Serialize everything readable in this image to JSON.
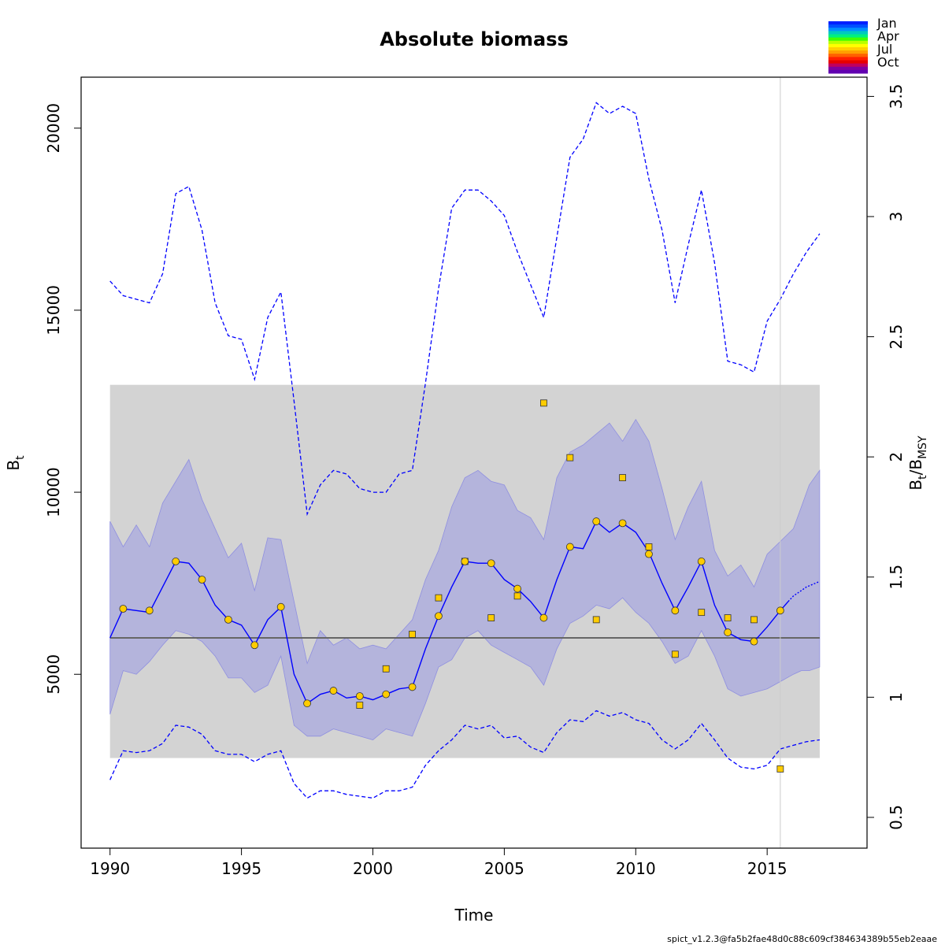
{
  "chart_data": {
    "type": "line",
    "title": "Absolute biomass",
    "xlabel": "Time",
    "ylabel": "B",
    "ylabel_sub": "t",
    "y2label_main": "B",
    "y2label_sub1": "t",
    "y2label_mid": "/B",
    "y2label_sub2": "MSY",
    "footer": "spict_v1.2.3@fa5b2fae48d0c88c609cf384634389b55eb2eaae",
    "xlim": [
      1988.9,
      2018.8
    ],
    "ylim": [
      225,
      21400
    ],
    "y2lim": [
      0.372,
      3.58
    ],
    "bmsy": 6000,
    "x_ticks": [
      1990,
      1995,
      2000,
      2005,
      2010,
      2015
    ],
    "y_ticks": [
      5000,
      10000,
      15000,
      20000
    ],
    "y2_ticks": [
      0.5,
      1,
      1.5,
      2,
      2.5,
      3,
      3.5
    ],
    "bmsy_band": {
      "x": [
        1990,
        2017
      ],
      "y": [
        2700,
        12950
      ]
    },
    "vline_x": 2015.5,
    "legend": {
      "labels": [
        "Jan",
        "Apr",
        "Jul",
        "Oct"
      ],
      "colors": [
        "#0020ff",
        "#0050ff",
        "#0090ff",
        "#00c8c0",
        "#00f080",
        "#40ff00",
        "#b8ff00",
        "#ffff00",
        "#ffd000",
        "#ffa000",
        "#ff6000",
        "#ff2000",
        "#e80000",
        "#c00060",
        "#8000a0",
        "#6000b0"
      ]
    },
    "colors": {
      "line": "#0000ff",
      "ci_fill": "#a6a6e0",
      "ci_edge": "#8f8fe0",
      "bmsy_line": "#666666",
      "band": "#d3d3d3",
      "point": "#ffcc00",
      "vline": "#cccccc"
    },
    "estimate": {
      "x": [
        1990,
        1990.5,
        1991,
        1991.5,
        1992,
        1992.5,
        1993,
        1993.5,
        1994,
        1994.5,
        1995,
        1995.5,
        1996,
        1996.5,
        1997,
        1997.5,
        1998,
        1998.5,
        1999,
        1999.5,
        2000,
        2000.5,
        2001,
        2001.5,
        2002,
        2002.5,
        2003,
        2003.5,
        2004,
        2004.5,
        2005,
        2005.5,
        2006,
        2006.5,
        2007,
        2007.5,
        2008,
        2008.5,
        2009,
        2009.5,
        2010,
        2010.5,
        2011,
        2011.5,
        2012,
        2012.5,
        2013,
        2013.5,
        2014,
        2014.5,
        2015,
        2015.5,
        2015.8
      ],
      "y": [
        6000,
        6800,
        6750,
        6700,
        7400,
        8100,
        8050,
        7600,
        6900,
        6500,
        6350,
        5800,
        6500,
        6850,
        5000,
        4200,
        4450,
        4550,
        4350,
        4400,
        4300,
        4450,
        4600,
        4650,
        5700,
        6600,
        7400,
        8100,
        8050,
        8050,
        7600,
        7350,
        7000,
        6550,
        7600,
        8500,
        8450,
        9200,
        8900,
        9150,
        8900,
        8350,
        7500,
        6750,
        7400,
        8100,
        6900,
        6150,
        5950,
        5900,
        6300,
        6750,
        7000
      ]
    },
    "prediction": {
      "x": [
        2015.8,
        2016,
        2016.5,
        2017
      ],
      "y": [
        7000,
        7150,
        7400,
        7550
      ]
    },
    "ci_upper": [
      9200,
      8500,
      9100,
      8500,
      9700,
      10300,
      10900,
      9800,
      9000,
      8200,
      8600,
      7300,
      8750,
      8700,
      7000,
      5300,
      6200,
      5800,
      6000,
      5700,
      5800,
      5700,
      6100,
      6500,
      7600,
      8400,
      9600,
      10400,
      10600,
      10300,
      10200,
      9500,
      9300,
      8700,
      10400,
      11100,
      11300,
      11600,
      11900,
      11400,
      12000,
      11400,
      10100,
      8700,
      9600,
      10300,
      8400,
      7700,
      8000,
      7400,
      8300,
      8650,
      9000,
      9600,
      10200,
      10600
    ],
    "ci_lower": [
      3900,
      5100,
      5000,
      5350,
      5800,
      6200,
      6100,
      5900,
      5500,
      4900,
      4900,
      4500,
      4700,
      5500,
      3600,
      3300,
      3300,
      3500,
      3400,
      3300,
      3200,
      3500,
      3400,
      3300,
      4200,
      5200,
      5400,
      6000,
      6200,
      5800,
      5600,
      5400,
      5200,
      4700,
      5700,
      6400,
      6600,
      6900,
      6800,
      7100,
      6700,
      6400,
      5900,
      5300,
      5500,
      6200,
      5500,
      4600,
      4400,
      4500,
      4600,
      4800,
      5000,
      5100,
      5100,
      5200
    ],
    "ci_x": [
      1990,
      1990.5,
      1991,
      1991.5,
      1992,
      1992.5,
      1993,
      1993.5,
      1994,
      1994.5,
      1995,
      1995.5,
      1996,
      1996.5,
      1997,
      1997.5,
      1998,
      1998.5,
      1999,
      1999.5,
      2000,
      2000.5,
      2001,
      2001.5,
      2002,
      2002.5,
      2003,
      2003.5,
      2004,
      2004.5,
      2005,
      2005.5,
      2006,
      2006.5,
      2007,
      2007.5,
      2008,
      2008.5,
      2009,
      2009.5,
      2010,
      2010.5,
      2011,
      2011.5,
      2012,
      2012.5,
      2013,
      2013.5,
      2014,
      2014.5,
      2015,
      2015.5,
      2016,
      2016.3,
      2016.6,
      2017
    ],
    "outer_upper": {
      "x": [
        1990,
        1990.5,
        1991,
        1991.5,
        1992,
        1992.5,
        1993,
        1993.5,
        1994,
        1994.5,
        1995,
        1995.5,
        1996,
        1996.5,
        1997,
        1997.5,
        1998,
        1998.5,
        1999,
        1999.5,
        2000,
        2000.5,
        2001,
        2001.5,
        2002,
        2002.5,
        2003,
        2003.5,
        2004,
        2004.5,
        2005,
        2005.5,
        2006,
        2006.5,
        2007,
        2007.5,
        2008,
        2008.5,
        2009,
        2009.5,
        2010,
        2010.5,
        2011,
        2011.5,
        2012,
        2012.5,
        2013,
        2013.5,
        2014,
        2014.5,
        2015,
        2015.5,
        2016,
        2016.5,
        2017
      ],
      "y": [
        15800,
        15400,
        15300,
        15200,
        16000,
        18200,
        18400,
        17200,
        15200,
        14300,
        14200,
        13100,
        14800,
        15500,
        12500,
        9400,
        10200,
        10600,
        10500,
        10100,
        10000,
        10000,
        10500,
        10600,
        13000,
        15600,
        17800,
        18300,
        18300,
        18000,
        17600,
        16600,
        15700,
        14800,
        17000,
        19200,
        19700,
        20700,
        20400,
        20600,
        20400,
        18600,
        17200,
        15200,
        16800,
        18300,
        16300,
        13600,
        13500,
        13300,
        14700,
        15300,
        16000,
        16600,
        17100
      ]
    },
    "outer_lower": {
      "x": [
        1990,
        1990.5,
        1991,
        1991.5,
        1992,
        1992.5,
        1993,
        1993.5,
        1994,
        1994.5,
        1995,
        1995.5,
        1996,
        1996.5,
        1997,
        1997.5,
        1998,
        1998.5,
        1999,
        1999.5,
        2000,
        2000.5,
        2001,
        2001.5,
        2002,
        2002.5,
        2003,
        2003.5,
        2004,
        2004.5,
        2005,
        2005.5,
        2006,
        2006.5,
        2007,
        2007.5,
        2008,
        2008.5,
        2009,
        2009.5,
        2010,
        2010.5,
        2011,
        2011.5,
        2012,
        2012.5,
        2013,
        2013.5,
        2014,
        2014.5,
        2015,
        2015.5,
        2016,
        2016.5,
        2017
      ],
      "y": [
        2100,
        2900,
        2850,
        2900,
        3100,
        3600,
        3550,
        3350,
        2900,
        2800,
        2800,
        2600,
        2800,
        2900,
        2000,
        1600,
        1800,
        1800,
        1700,
        1650,
        1600,
        1800,
        1800,
        1900,
        2500,
        2900,
        3200,
        3600,
        3500,
        3600,
        3250,
        3300,
        3000,
        2850,
        3400,
        3750,
        3700,
        4000,
        3850,
        3950,
        3750,
        3650,
        3200,
        2950,
        3200,
        3650,
        3200,
        2700,
        2450,
        2400,
        2500,
        2950,
        3050,
        3150,
        3200
      ]
    },
    "obs_circles": {
      "x": [
        1990.5,
        1991.5,
        1992.5,
        1993.5,
        1994.5,
        1995.5,
        1996.5,
        1997.5,
        1998.5,
        1999.5,
        2000.5,
        2001.5,
        2002.5,
        2003.5,
        2004.5,
        2005.5,
        2006.5,
        2007.5,
        2008.5,
        2009.5,
        2010.5,
        2011.5,
        2012.5,
        2013.5,
        2014.5,
        2015.5
      ],
      "y": [
        6800,
        6750,
        8100,
        7600,
        6500,
        5800,
        6850,
        4200,
        4550,
        4400,
        4450,
        4650,
        6600,
        8100,
        8050,
        7350,
        6550,
        8500,
        9200,
        9150,
        8300,
        6750,
        8100,
        6150,
        5900,
        6750
      ]
    },
    "obs_squares": {
      "x": [
        1999.5,
        2000.5,
        2001.5,
        2002.5,
        2003.5,
        2004.5,
        2005.5,
        2006.5,
        2007.5,
        2008.5,
        2009.5,
        2010.5,
        2011.5,
        2012.5,
        2013.5,
        2014.5,
        2015.5
      ],
      "y": [
        4150,
        5150,
        6100,
        7100,
        8100,
        6550,
        7150,
        12450,
        10950,
        6500,
        10400,
        8500,
        5550,
        6700,
        6550,
        6500,
        2400
      ]
    }
  }
}
